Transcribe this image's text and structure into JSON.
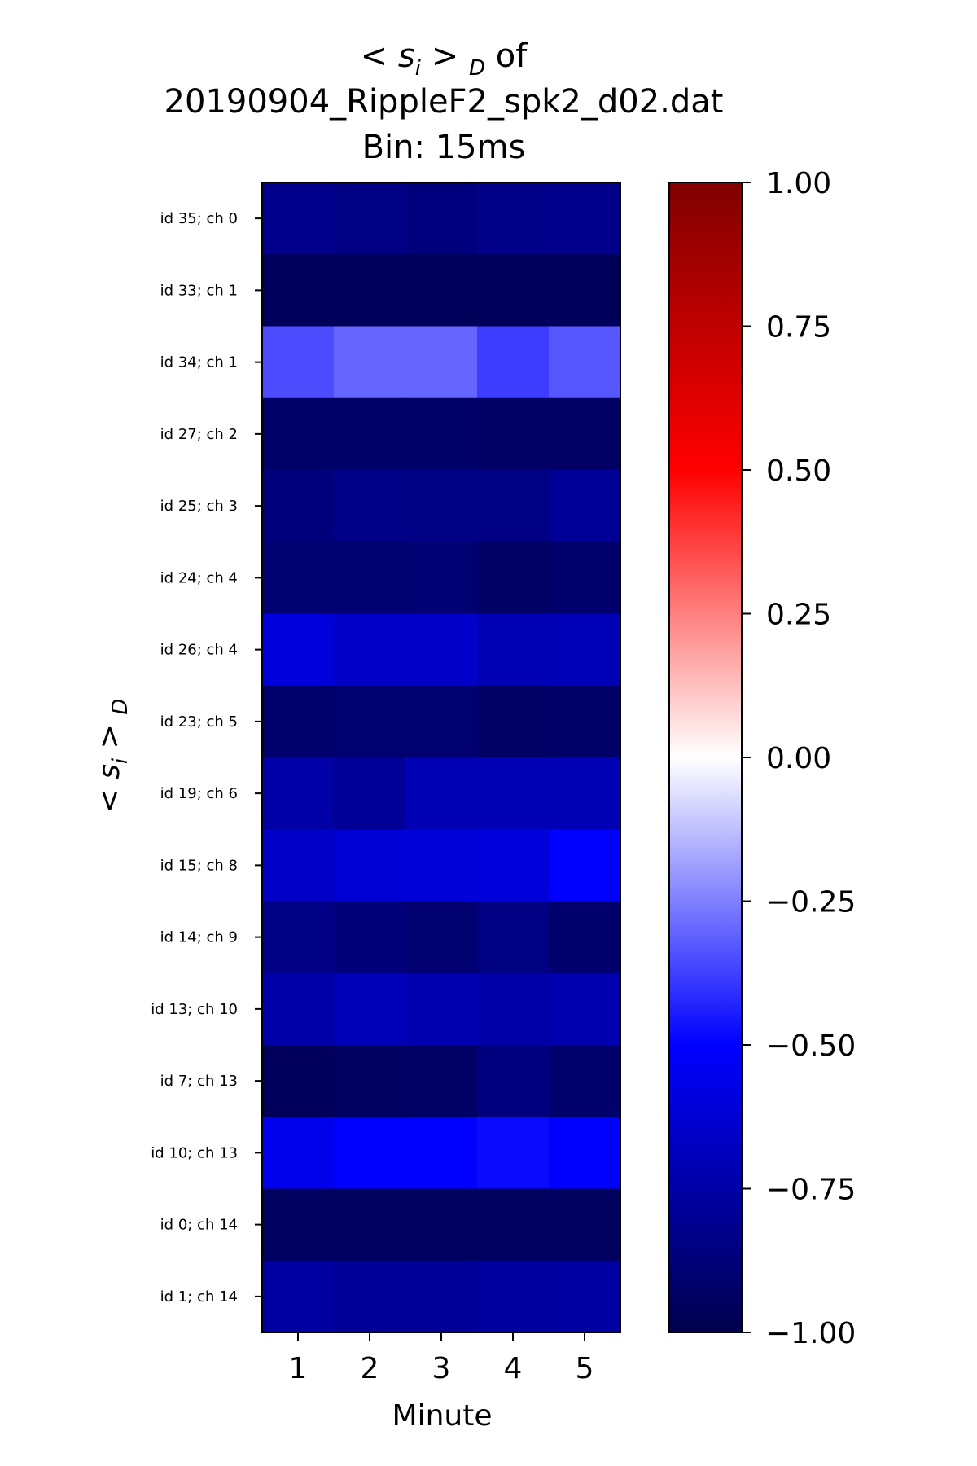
{
  "chart_data": {
    "type": "heatmap",
    "title_line1": "< s",
    "title_line1_sub": "i",
    "title_line1_rest": " > ",
    "title_line1_sub2": "D",
    "title_line1_end": " of",
    "title_line2": "20190904_RippleF2_spk2_d02.dat",
    "title_line3": "Bin: 15ms",
    "xlabel": "Minute",
    "ylabel": "< s",
    "ylabel_sub": "i",
    "ylabel_rest": " > ",
    "ylabel_sub2": "D",
    "x": [
      "1",
      "2",
      "3",
      "4",
      "5"
    ],
    "rows": [
      "id 35; ch 0",
      "id 33; ch 1",
      "id 34; ch 1",
      "id 27; ch 2",
      "id 25; ch 3",
      "id 24; ch 4",
      "id 26; ch 4",
      "id 23; ch 5",
      "id 19; ch 6",
      "id 15; ch 8",
      "id 14; ch 9",
      "id 13; ch 10",
      "id 7; ch 13",
      "id 10; ch 13",
      "id 0; ch 14",
      "id 1; ch 14"
    ],
    "values": [
      [
        -0.82,
        -0.84,
        -0.86,
        -0.83,
        -0.82
      ],
      [
        -0.96,
        -0.96,
        -0.96,
        -0.96,
        -0.96
      ],
      [
        -0.35,
        -0.3,
        -0.3,
        -0.38,
        -0.33
      ],
      [
        -0.92,
        -0.92,
        -0.92,
        -0.93,
        -0.93
      ],
      [
        -0.87,
        -0.83,
        -0.84,
        -0.85,
        -0.79
      ],
      [
        -0.9,
        -0.9,
        -0.89,
        -0.93,
        -0.91
      ],
      [
        -0.6,
        -0.65,
        -0.65,
        -0.71,
        -0.7
      ],
      [
        -0.91,
        -0.9,
        -0.9,
        -0.93,
        -0.92
      ],
      [
        -0.75,
        -0.79,
        -0.71,
        -0.71,
        -0.71
      ],
      [
        -0.66,
        -0.62,
        -0.61,
        -0.6,
        -0.5
      ],
      [
        -0.84,
        -0.88,
        -0.9,
        -0.85,
        -0.91
      ],
      [
        -0.74,
        -0.7,
        -0.72,
        -0.75,
        -0.72
      ],
      [
        -0.96,
        -0.94,
        -0.93,
        -0.86,
        -0.91
      ],
      [
        -0.55,
        -0.5,
        -0.5,
        -0.48,
        -0.5
      ],
      [
        -0.95,
        -0.95,
        -0.95,
        -0.95,
        -0.95
      ],
      [
        -0.76,
        -0.79,
        -0.79,
        -0.77,
        -0.76
      ]
    ],
    "colorbar": {
      "colormap": "seismic",
      "vmin": -1.0,
      "vmax": 1.0,
      "ticks": [
        1.0,
        0.75,
        0.5,
        0.25,
        0.0,
        -0.25,
        -0.5,
        -0.75,
        -1.0
      ],
      "tick_labels": [
        "1.00",
        "0.75",
        "0.50",
        "0.25",
        "0.00",
        "−0.25",
        "−0.50",
        "−0.75",
        "−1.00"
      ]
    },
    "grid": false
  }
}
